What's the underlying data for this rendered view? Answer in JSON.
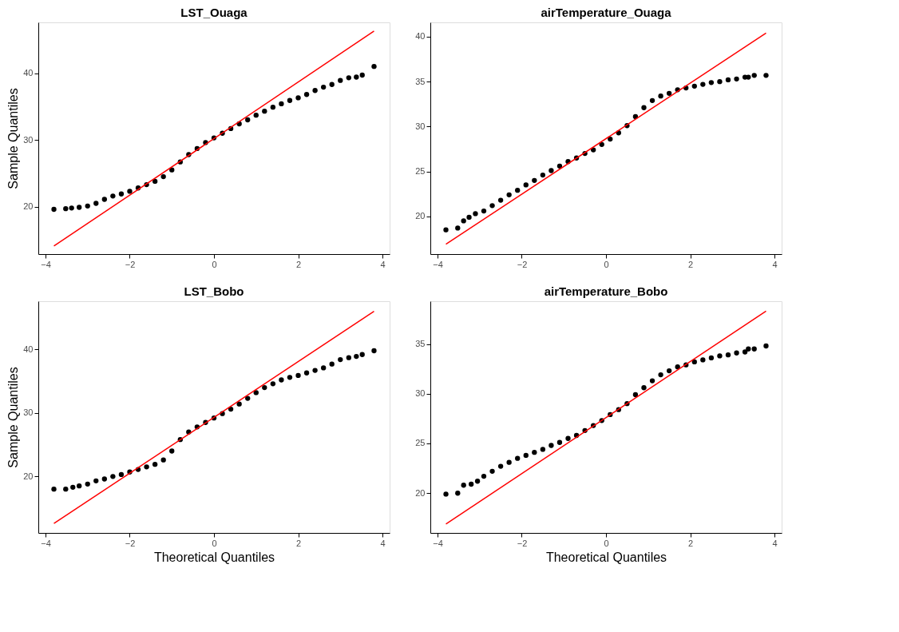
{
  "chart_data": [
    {
      "type": "scatter",
      "title": "LST_Ouaga",
      "ylabel": "Sample Quantiles",
      "xlim": [
        -4.17,
        4.17
      ],
      "ylim": [
        12.9,
        47.6
      ],
      "xticks": [
        -4,
        -2,
        0,
        2,
        4
      ],
      "yticks": [
        20,
        30,
        40
      ],
      "grid": false,
      "series": [
        {
          "marker": "circle",
          "color": "#000000",
          "x": [
            -3.8,
            -3.52,
            -3.38,
            -3.2,
            -3.0,
            -2.8,
            -2.6,
            -2.4,
            -2.2,
            -2.0,
            -1.8,
            -1.6,
            -1.4,
            -1.2,
            -1.0,
            -0.8,
            -0.6,
            -0.4,
            -0.2,
            0,
            0.2,
            0.4,
            0.6,
            0.8,
            1.0,
            1.2,
            1.4,
            1.6,
            1.8,
            2.0,
            2.2,
            2.4,
            2.6,
            2.8,
            3.0,
            3.2,
            3.38,
            3.52,
            3.8
          ],
          "values": [
            19.6,
            19.7,
            19.8,
            19.9,
            20.1,
            20.5,
            21.1,
            21.6,
            21.9,
            22.3,
            22.8,
            23.3,
            23.8,
            24.5,
            25.5,
            26.7,
            27.8,
            28.7,
            29.6,
            30.3,
            31.0,
            31.7,
            32.4,
            33.0,
            33.7,
            34.3,
            34.9,
            35.4,
            35.9,
            36.3,
            36.8,
            37.4,
            37.9,
            38.3,
            38.9,
            39.3,
            39.4,
            39.7,
            41.0
          ]
        },
        {
          "type": "line",
          "color": "#ff0000",
          "x": [
            -3.8,
            3.8
          ],
          "values": [
            14.1,
            46.3
          ]
        }
      ]
    },
    {
      "type": "scatter",
      "title": "airTemperature_Ouaga",
      "xlim": [
        -4.17,
        4.17
      ],
      "ylim": [
        15.8,
        41.6
      ],
      "xticks": [
        -4,
        -2,
        0,
        2,
        4
      ],
      "yticks": [
        20,
        25,
        30,
        35,
        40
      ],
      "grid": false,
      "series": [
        {
          "marker": "circle",
          "color": "#000000",
          "x": [
            -3.8,
            -3.52,
            -3.38,
            -3.25,
            -3.1,
            -2.9,
            -2.7,
            -2.5,
            -2.3,
            -2.1,
            -1.9,
            -1.7,
            -1.5,
            -1.3,
            -1.1,
            -0.9,
            -0.7,
            -0.5,
            -0.3,
            -0.1,
            0.1,
            0.3,
            0.5,
            0.7,
            0.9,
            1.1,
            1.3,
            1.5,
            1.7,
            1.9,
            2.1,
            2.3,
            2.5,
            2.7,
            2.9,
            3.1,
            3.3,
            3.38,
            3.52,
            3.8
          ],
          "values": [
            18.5,
            18.7,
            19.5,
            19.9,
            20.3,
            20.6,
            21.2,
            21.8,
            22.4,
            22.9,
            23.5,
            24.0,
            24.6,
            25.1,
            25.6,
            26.1,
            26.5,
            27.0,
            27.4,
            28.0,
            28.6,
            29.3,
            30.1,
            31.1,
            32.1,
            32.9,
            33.4,
            33.7,
            34.1,
            34.3,
            34.5,
            34.7,
            34.9,
            35.0,
            35.2,
            35.3,
            35.5,
            35.5,
            35.7,
            35.7
          ]
        },
        {
          "type": "line",
          "color": "#ff0000",
          "x": [
            -3.8,
            3.8
          ],
          "values": [
            16.9,
            40.4
          ]
        }
      ]
    },
    {
      "type": "scatter",
      "title": "LST_Bobo",
      "xlabel": "Theoretical Quantiles",
      "ylabel": "Sample Quantiles",
      "xlim": [
        -4.17,
        4.17
      ],
      "ylim": [
        11.1,
        47.6
      ],
      "xticks": [
        -4,
        -2,
        0,
        2,
        4
      ],
      "yticks": [
        20,
        30,
        40
      ],
      "grid": false,
      "series": [
        {
          "marker": "circle",
          "color": "#000000",
          "x": [
            -3.8,
            -3.52,
            -3.35,
            -3.2,
            -3.0,
            -2.8,
            -2.6,
            -2.4,
            -2.2,
            -2.0,
            -1.8,
            -1.6,
            -1.4,
            -1.2,
            -1.0,
            -0.8,
            -0.6,
            -0.4,
            -0.2,
            0,
            0.2,
            0.4,
            0.6,
            0.8,
            1.0,
            1.2,
            1.4,
            1.6,
            1.8,
            2.0,
            2.2,
            2.4,
            2.6,
            2.8,
            3.0,
            3.2,
            3.38,
            3.52,
            3.8
          ],
          "values": [
            18.0,
            18.0,
            18.3,
            18.5,
            18.8,
            19.3,
            19.6,
            20.0,
            20.3,
            20.7,
            21.1,
            21.5,
            21.9,
            22.6,
            24.0,
            25.8,
            27.0,
            27.8,
            28.5,
            29.2,
            29.9,
            30.6,
            31.4,
            32.3,
            33.2,
            34.0,
            34.6,
            35.2,
            35.6,
            35.9,
            36.3,
            36.7,
            37.1,
            37.7,
            38.4,
            38.7,
            38.9,
            39.2,
            39.8
          ]
        },
        {
          "type": "line",
          "color": "#ff0000",
          "x": [
            -3.8,
            3.8
          ],
          "values": [
            12.6,
            46.0
          ]
        }
      ]
    },
    {
      "type": "scatter",
      "title": "airTemperature_Bobo",
      "xlabel": "Theoretical Quantiles",
      "xlim": [
        -4.17,
        4.17
      ],
      "ylim": [
        16.0,
        39.3
      ],
      "xticks": [
        -4,
        -2,
        0,
        2,
        4
      ],
      "yticks": [
        20,
        25,
        30,
        35
      ],
      "grid": false,
      "series": [
        {
          "marker": "circle",
          "color": "#000000",
          "x": [
            -3.8,
            -3.52,
            -3.38,
            -3.2,
            -3.05,
            -2.9,
            -2.7,
            -2.5,
            -2.3,
            -2.1,
            -1.9,
            -1.7,
            -1.5,
            -1.3,
            -1.1,
            -0.9,
            -0.7,
            -0.5,
            -0.3,
            -0.1,
            0.1,
            0.3,
            0.5,
            0.7,
            0.9,
            1.1,
            1.3,
            1.5,
            1.7,
            1.9,
            2.1,
            2.3,
            2.5,
            2.7,
            2.9,
            3.1,
            3.3,
            3.38,
            3.52,
            3.8
          ],
          "values": [
            19.9,
            20.0,
            20.8,
            20.9,
            21.2,
            21.7,
            22.2,
            22.7,
            23.1,
            23.5,
            23.8,
            24.1,
            24.4,
            24.8,
            25.1,
            25.5,
            25.8,
            26.3,
            26.8,
            27.3,
            27.9,
            28.4,
            29.0,
            29.9,
            30.6,
            31.3,
            31.9,
            32.3,
            32.7,
            32.9,
            33.2,
            33.4,
            33.6,
            33.8,
            33.9,
            34.1,
            34.2,
            34.5,
            34.5,
            34.8
          ]
        },
        {
          "type": "line",
          "color": "#ff0000",
          "x": [
            -3.8,
            3.8
          ],
          "values": [
            16.9,
            38.3
          ]
        }
      ]
    }
  ]
}
